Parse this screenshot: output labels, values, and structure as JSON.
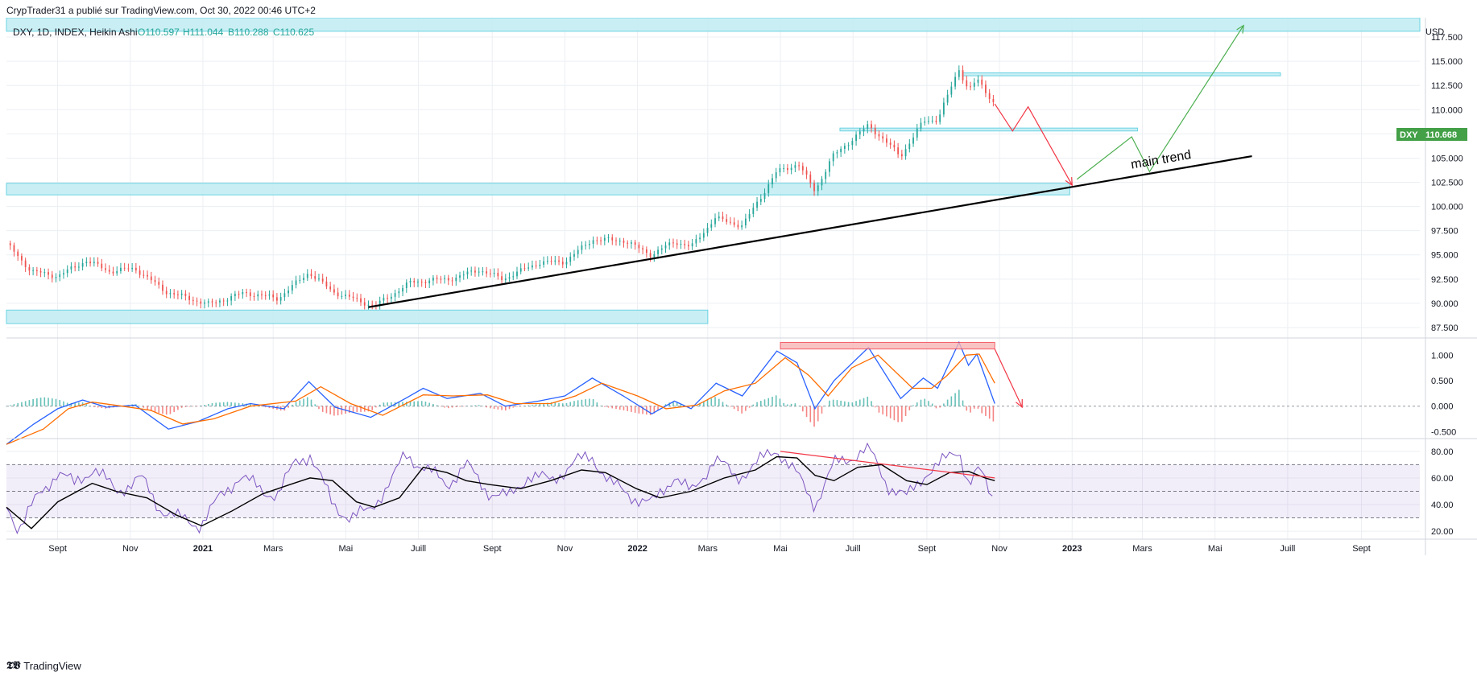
{
  "header": {
    "publisher_line": "CrypTrader31 a publié sur TradingView.com, Oct 30, 2022 00:46 UTC+2"
  },
  "footer": {
    "brand": "TradingView",
    "logo_glyph": "𝕿𝖁"
  },
  "colors": {
    "zone_fill": "#c4eef3",
    "zone_stroke": "#5ccfe0",
    "grid": "#eceff3",
    "bull": "#26a69a",
    "bear": "#ef5350",
    "trend": "#000000",
    "macd": "#2962ff",
    "signal": "#ff6d00",
    "rsi": "#7e57c2",
    "rsi_ma": "#000000",
    "arrow_red": "#f23645",
    "arrow_green": "#4caf50",
    "price_tag": "#43a047"
  },
  "chart_data": [
    {
      "type": "candlestick",
      "title": "DXY, 1D, INDEX, Heikin Ashi",
      "ohlc": {
        "o_label": "O",
        "o": "110.597",
        "h_label": "H",
        "h": "111.044",
        "b_label": "B",
        "b": "110.288",
        "c_label": "C",
        "c": "110.625"
      },
      "currency": "USD",
      "last_price": {
        "symbol": "DXY",
        "value": "110.668"
      },
      "ylim": [
        86.5,
        119.5
      ],
      "y_ticks": [
        "87.500",
        "90.000",
        "92.500",
        "95.000",
        "97.500",
        "100.000",
        "102.500",
        "105.000",
        "107.500",
        "110.000",
        "112.500",
        "115.000",
        "117.500"
      ],
      "x_ticks": [
        {
          "label": "Sept",
          "t": "2020-09-01",
          "bold": false
        },
        {
          "label": "Nov",
          "t": "2020-11-01",
          "bold": false
        },
        {
          "label": "2021",
          "t": "2021-01-01",
          "bold": true
        },
        {
          "label": "Mars",
          "t": "2021-03-01",
          "bold": false
        },
        {
          "label": "Mai",
          "t": "2021-05-01",
          "bold": false
        },
        {
          "label": "Juill",
          "t": "2021-07-01",
          "bold": false
        },
        {
          "label": "Sept",
          "t": "2021-09-01",
          "bold": false
        },
        {
          "label": "Nov",
          "t": "2021-11-01",
          "bold": false
        },
        {
          "label": "2022",
          "t": "2022-01-01",
          "bold": true
        },
        {
          "label": "Mars",
          "t": "2022-03-01",
          "bold": false
        },
        {
          "label": "Mai",
          "t": "2022-05-01",
          "bold": false
        },
        {
          "label": "Juill",
          "t": "2022-07-01",
          "bold": false
        },
        {
          "label": "Sept",
          "t": "2022-09-01",
          "bold": false
        },
        {
          "label": "Nov",
          "t": "2022-11-01",
          "bold": false
        },
        {
          "label": "2023",
          "t": "2023-01-01",
          "bold": true
        },
        {
          "label": "Mars",
          "t": "2023-03-01",
          "bold": false
        },
        {
          "label": "Mai",
          "t": "2023-05-01",
          "bold": false
        },
        {
          "label": "Juill",
          "t": "2023-07-01",
          "bold": false
        },
        {
          "label": "Sept",
          "t": "2023-09-01",
          "bold": false
        }
      ],
      "x_range": [
        "2020-07-20",
        "2023-10-20"
      ],
      "price_path": [
        [
          "2020-07-20",
          96.2
        ],
        [
          "2020-08-10",
          93.3
        ],
        [
          "2020-09-01",
          92.8
        ],
        [
          "2020-09-25",
          94.4
        ],
        [
          "2020-10-15",
          93.3
        ],
        [
          "2020-11-05",
          93.6
        ],
        [
          "2020-12-01",
          91.2
        ],
        [
          "2021-01-06",
          89.9
        ],
        [
          "2021-02-05",
          91.1
        ],
        [
          "2021-03-05",
          90.5
        ],
        [
          "2021-03-31",
          93.2
        ],
        [
          "2021-04-20",
          91.2
        ],
        [
          "2021-05-25",
          89.7
        ],
        [
          "2021-06-25",
          92.2
        ],
        [
          "2021-08-01",
          92.6
        ],
        [
          "2021-08-20",
          93.5
        ],
        [
          "2021-09-10",
          92.5
        ],
        [
          "2021-10-10",
          94.2
        ],
        [
          "2021-11-01",
          94.3
        ],
        [
          "2021-11-24",
          96.6
        ],
        [
          "2021-12-20",
          96.5
        ],
        [
          "2022-01-13",
          95.0
        ],
        [
          "2022-02-01",
          96.4
        ],
        [
          "2022-02-15",
          95.8
        ],
        [
          "2022-03-07",
          98.8
        ],
        [
          "2022-03-30",
          98.0
        ],
        [
          "2022-04-28",
          103.6
        ],
        [
          "2022-05-16",
          104.4
        ],
        [
          "2022-05-30",
          101.6
        ],
        [
          "2022-06-14",
          105.2
        ],
        [
          "2022-07-14",
          108.4
        ],
        [
          "2022-08-10",
          105.2
        ],
        [
          "2022-08-29",
          108.8
        ],
        [
          "2022-09-10",
          109.0
        ],
        [
          "2022-09-28",
          114.2
        ],
        [
          "2022-10-06",
          112.0
        ],
        [
          "2022-10-13",
          113.1
        ],
        [
          "2022-10-28",
          110.6
        ]
      ],
      "zones": [
        {
          "t0": "2020-07-20",
          "t1": "2023-10-20",
          "y0": 118.1,
          "y1": 120.5
        },
        {
          "t0": "2020-07-20",
          "t1": "2022-12-30",
          "y0": 101.2,
          "y1": 102.4
        },
        {
          "t0": "2020-07-20",
          "t1": "2022-03-01",
          "y0": 87.9,
          "y1": 89.3
        },
        {
          "t0": "2022-10-01",
          "t1": "2023-06-25",
          "y0": 113.5,
          "y1": 113.8
        },
        {
          "t0": "2022-06-20",
          "t1": "2023-02-25",
          "y0": 107.8,
          "y1": 108.1
        }
      ],
      "trendline": {
        "from": [
          "2021-05-20",
          89.6
        ],
        "to": [
          "2023-06-01",
          105.2
        ],
        "label": "main trend"
      },
      "arrows_red": [
        [
          "2022-10-28",
          110.6
        ],
        [
          "2022-11-12",
          107.8
        ],
        [
          "2022-11-25",
          110.3
        ],
        [
          "2023-01-01",
          102.2
        ]
      ],
      "arrows_green": [
        [
          "2023-01-05",
          102.8
        ],
        [
          "2023-02-20",
          107.2
        ],
        [
          "2023-03-07",
          103.6
        ],
        [
          "2023-05-25",
          118.7
        ]
      ]
    },
    {
      "type": "macd",
      "ylim": [
        -0.62,
        1.32
      ],
      "y_ticks": [
        "1.000",
        "0.500",
        "0.000",
        "-0.500"
      ],
      "macd_path": [
        [
          "2020-07-20",
          -0.75
        ],
        [
          "2020-08-12",
          -0.35
        ],
        [
          "2020-09-01",
          -0.05
        ],
        [
          "2020-09-22",
          0.12
        ],
        [
          "2020-10-12",
          -0.02
        ],
        [
          "2020-11-05",
          0.02
        ],
        [
          "2020-12-03",
          -0.45
        ],
        [
          "2020-12-28",
          -0.3
        ],
        [
          "2021-01-22",
          -0.05
        ],
        [
          "2021-02-10",
          0.05
        ],
        [
          "2021-03-10",
          -0.05
        ],
        [
          "2021-03-31",
          0.48
        ],
        [
          "2021-04-22",
          -0.02
        ],
        [
          "2021-05-22",
          -0.22
        ],
        [
          "2021-06-20",
          0.15
        ],
        [
          "2021-07-05",
          0.35
        ],
        [
          "2021-07-25",
          0.15
        ],
        [
          "2021-08-22",
          0.25
        ],
        [
          "2021-09-12",
          0.0
        ],
        [
          "2021-10-10",
          0.1
        ],
        [
          "2021-11-01",
          0.2
        ],
        [
          "2021-11-24",
          0.55
        ],
        [
          "2021-12-20",
          0.2
        ],
        [
          "2022-01-13",
          -0.15
        ],
        [
          "2022-02-01",
          0.1
        ],
        [
          "2022-02-15",
          -0.05
        ],
        [
          "2022-03-08",
          0.45
        ],
        [
          "2022-03-30",
          0.2
        ],
        [
          "2022-04-28",
          1.08
        ],
        [
          "2022-05-15",
          0.85
        ],
        [
          "2022-05-30",
          -0.05
        ],
        [
          "2022-06-15",
          0.5
        ],
        [
          "2022-07-14",
          1.15
        ],
        [
          "2022-08-10",
          0.15
        ],
        [
          "2022-08-29",
          0.55
        ],
        [
          "2022-09-10",
          0.35
        ],
        [
          "2022-09-28",
          1.25
        ],
        [
          "2022-10-06",
          0.8
        ],
        [
          "2022-10-13",
          1.02
        ],
        [
          "2022-10-28",
          0.05
        ]
      ],
      "signal_path": [
        [
          "2020-07-20",
          -0.75
        ],
        [
          "2020-08-20",
          -0.45
        ],
        [
          "2020-09-10",
          -0.05
        ],
        [
          "2020-09-30",
          0.08
        ],
        [
          "2020-10-25",
          0.0
        ],
        [
          "2020-11-18",
          -0.08
        ],
        [
          "2020-12-15",
          -0.35
        ],
        [
          "2021-01-10",
          -0.25
        ],
        [
          "2021-02-10",
          0.0
        ],
        [
          "2021-03-20",
          0.1
        ],
        [
          "2021-04-10",
          0.38
        ],
        [
          "2021-05-05",
          0.05
        ],
        [
          "2021-06-01",
          -0.18
        ],
        [
          "2021-07-05",
          0.22
        ],
        [
          "2021-07-30",
          0.2
        ],
        [
          "2021-08-28",
          0.22
        ],
        [
          "2021-09-20",
          0.05
        ],
        [
          "2021-10-20",
          0.05
        ],
        [
          "2021-11-10",
          0.2
        ],
        [
          "2021-12-02",
          0.45
        ],
        [
          "2022-01-01",
          0.2
        ],
        [
          "2022-01-25",
          -0.05
        ],
        [
          "2022-02-20",
          0.02
        ],
        [
          "2022-03-15",
          0.3
        ],
        [
          "2022-04-10",
          0.45
        ],
        [
          "2022-05-05",
          0.95
        ],
        [
          "2022-05-25",
          0.6
        ],
        [
          "2022-06-10",
          0.2
        ],
        [
          "2022-06-30",
          0.75
        ],
        [
          "2022-07-22",
          1.0
        ],
        [
          "2022-08-20",
          0.35
        ],
        [
          "2022-09-05",
          0.35
        ],
        [
          "2022-09-18",
          0.6
        ],
        [
          "2022-10-04",
          1.0
        ],
        [
          "2022-10-15",
          1.02
        ],
        [
          "2022-10-28",
          0.45
        ]
      ],
      "divergence_box": {
        "t0": "2022-05-01",
        "t1": "2022-10-28",
        "y0": 1.12,
        "y1": 1.25
      },
      "arrow_red": [
        [
          "2022-10-28",
          1.12
        ],
        [
          "2022-11-20",
          -0.02
        ]
      ]
    },
    {
      "type": "rsi",
      "ylim": [
        14,
        89
      ],
      "y_ticks": [
        "80.00",
        "60.00",
        "40.00",
        "20.00"
      ],
      "band": [
        30,
        70
      ],
      "mid": 50,
      "rsi_path": [
        [
          "2020-07-20",
          40
        ],
        [
          "2020-07-30",
          22
        ],
        [
          "2020-08-15",
          45
        ],
        [
          "2020-09-01",
          65
        ],
        [
          "2020-09-15",
          55
        ],
        [
          "2020-10-01",
          68
        ],
        [
          "2020-10-20",
          50
        ],
        [
          "2020-11-10",
          60
        ],
        [
          "2020-11-25",
          38
        ],
        [
          "2020-12-10",
          30
        ],
        [
          "2020-12-30",
          25
        ],
        [
          "2021-01-15",
          45
        ],
        [
          "2021-02-01",
          62
        ],
        [
          "2021-02-20",
          50
        ],
        [
          "2021-03-05",
          48
        ],
        [
          "2021-03-20",
          72
        ],
        [
          "2021-04-01",
          78
        ],
        [
          "2021-04-20",
          40
        ],
        [
          "2021-05-05",
          30
        ],
        [
          "2021-05-20",
          35
        ],
        [
          "2021-06-10",
          60
        ],
        [
          "2021-06-20",
          78
        ],
        [
          "2021-07-10",
          65
        ],
        [
          "2021-07-25",
          55
        ],
        [
          "2021-08-10",
          70
        ],
        [
          "2021-08-28",
          50
        ],
        [
          "2021-09-15",
          45
        ],
        [
          "2021-10-01",
          62
        ],
        [
          "2021-10-20",
          58
        ],
        [
          "2021-11-10",
          72
        ],
        [
          "2021-11-24",
          76
        ],
        [
          "2021-12-10",
          55
        ],
        [
          "2021-12-31",
          45
        ],
        [
          "2022-01-13",
          40
        ],
        [
          "2022-02-01",
          62
        ],
        [
          "2022-02-15",
          48
        ],
        [
          "2022-03-07",
          75
        ],
        [
          "2022-03-25",
          60
        ],
        [
          "2022-04-10",
          70
        ],
        [
          "2022-04-28",
          82
        ],
        [
          "2022-05-15",
          62
        ],
        [
          "2022-05-30",
          40
        ],
        [
          "2022-06-15",
          70
        ],
        [
          "2022-07-14",
          82
        ],
        [
          "2022-07-30",
          55
        ],
        [
          "2022-08-15",
          45
        ],
        [
          "2022-09-01",
          65
        ],
        [
          "2022-09-12",
          70
        ],
        [
          "2022-09-28",
          82
        ],
        [
          "2022-10-06",
          55
        ],
        [
          "2022-10-15",
          66
        ],
        [
          "2022-10-28",
          42
        ]
      ],
      "rsi_ma_path": [
        [
          "2020-07-20",
          38
        ],
        [
          "2020-08-10",
          22
        ],
        [
          "2020-09-01",
          42
        ],
        [
          "2020-09-30",
          56
        ],
        [
          "2020-10-20",
          50
        ],
        [
          "2020-11-15",
          45
        ],
        [
          "2020-12-10",
          32
        ],
        [
          "2020-12-31",
          24
        ],
        [
          "2021-01-25",
          35
        ],
        [
          "2021-02-20",
          48
        ],
        [
          "2021-03-15",
          55
        ],
        [
          "2021-04-01",
          60
        ],
        [
          "2021-04-20",
          58
        ],
        [
          "2021-05-10",
          42
        ],
        [
          "2021-05-25",
          38
        ],
        [
          "2021-06-15",
          45
        ],
        [
          "2021-07-05",
          68
        ],
        [
          "2021-07-25",
          64
        ],
        [
          "2021-08-10",
          58
        ],
        [
          "2021-08-30",
          55
        ],
        [
          "2021-09-25",
          52
        ],
        [
          "2021-10-20",
          58
        ],
        [
          "2021-11-15",
          66
        ],
        [
          "2021-12-05",
          64
        ],
        [
          "2021-12-31",
          52
        ],
        [
          "2022-01-20",
          45
        ],
        [
          "2022-02-15",
          50
        ],
        [
          "2022-03-15",
          60
        ],
        [
          "2022-04-10",
          66
        ],
        [
          "2022-04-28",
          76
        ],
        [
          "2022-05-15",
          75
        ],
        [
          "2022-05-30",
          62
        ],
        [
          "2022-06-15",
          58
        ],
        [
          "2022-07-05",
          68
        ],
        [
          "2022-07-25",
          70
        ],
        [
          "2022-08-15",
          58
        ],
        [
          "2022-09-01",
          55
        ],
        [
          "2022-09-20",
          64
        ],
        [
          "2022-10-06",
          65
        ],
        [
          "2022-10-20",
          60
        ],
        [
          "2022-10-28",
          58
        ]
      ],
      "divergence_line": [
        [
          "2022-05-01",
          80
        ],
        [
          "2022-10-28",
          60
        ]
      ]
    }
  ]
}
